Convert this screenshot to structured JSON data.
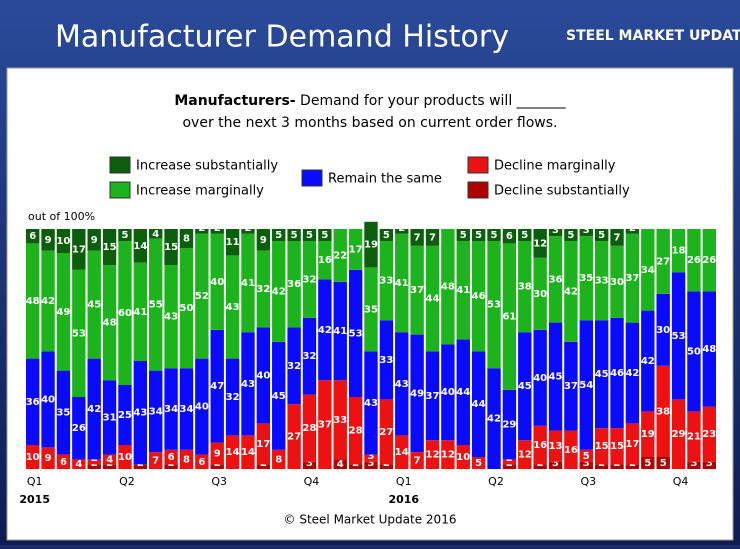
{
  "header": {
    "title": "Manufacturer Demand History",
    "logo": "STEEL MARKET UPDATE"
  },
  "chart_data": {
    "type": "stacked_bar_100",
    "subtitle_bold": "Manufacturers-",
    "subtitle_line1": "Demand for your products will _______",
    "subtitle_line2": "over the next 3 months based on current order flows.",
    "y_note": "out of 100%",
    "footer": "© Steel Market Update 2016",
    "categories": [
      "Q1",
      null,
      null,
      null,
      null,
      null,
      "Q2",
      null,
      null,
      null,
      null,
      null,
      "Q3",
      null,
      null,
      null,
      null,
      null,
      "Q4",
      null,
      null,
      null,
      null,
      null,
      "Q1",
      null,
      null,
      null,
      null,
      null,
      "Q2",
      null,
      null,
      null,
      null,
      null,
      "Q3",
      null,
      null,
      null,
      null,
      null,
      "Q4",
      null,
      null
    ],
    "years": [
      "2015",
      null,
      null,
      null,
      null,
      null,
      null,
      null,
      null,
      null,
      null,
      null,
      null,
      null,
      null,
      null,
      null,
      null,
      null,
      null,
      null,
      null,
      null,
      null,
      "2016",
      null,
      null,
      null,
      null,
      null,
      null,
      null,
      null,
      null,
      null,
      null,
      null,
      null,
      null,
      null,
      null,
      null,
      null,
      null,
      null
    ],
    "ylim": [
      0,
      100
    ],
    "series": [
      {
        "name": "Decline substantially",
        "color": "#b00000",
        "values": [
          0,
          0,
          0,
          0,
          2,
          2,
          0,
          2,
          0,
          2,
          0,
          0,
          2,
          0,
          0,
          2,
          0,
          0,
          3,
          0,
          4,
          2,
          3,
          2,
          0,
          0,
          0,
          0,
          0,
          0,
          0,
          2,
          0,
          2,
          3,
          0,
          3,
          2,
          2,
          2,
          5,
          5,
          0,
          3,
          3
        ]
      },
      {
        "name": "Decline marginally",
        "color": "#ee1111",
        "values": [
          10,
          9,
          6,
          4,
          2,
          4,
          10,
          0,
          7,
          6,
          8,
          6,
          9,
          14,
          14,
          17,
          8,
          27,
          28,
          37,
          33,
          28,
          3,
          27,
          14,
          7,
          12,
          12,
          10,
          5,
          0,
          2,
          12,
          16,
          13,
          16,
          5,
          15,
          15,
          17,
          19,
          38,
          29,
          21,
          23
        ]
      },
      {
        "name": "Remain the same",
        "color": "#0a0aff",
        "values": [
          36,
          40,
          35,
          26,
          42,
          31,
          25,
          43,
          34,
          34,
          34,
          40,
          47,
          32,
          43,
          40,
          45,
          32,
          32,
          42,
          41,
          53,
          43,
          33,
          43,
          49,
          37,
          40,
          44,
          44,
          42,
          29,
          45,
          40,
          45,
          37,
          54,
          45,
          46,
          42,
          42,
          30,
          53,
          50,
          48
        ]
      },
      {
        "name": "Increase marginally",
        "color": "#1db31d",
        "values": [
          48,
          42,
          49,
          53,
          45,
          48,
          60,
          41,
          55,
          43,
          50,
          52,
          40,
          43,
          41,
          32,
          42,
          36,
          32,
          16,
          22,
          17,
          35,
          33,
          41,
          37,
          44,
          48,
          41,
          46,
          53,
          61,
          38,
          30,
          36,
          42,
          35,
          33,
          30,
          37,
          34,
          27,
          18,
          26,
          26
        ]
      },
      {
        "name": "Increase substantially",
        "color": "#0b5e0b",
        "values": [
          6,
          9,
          10,
          17,
          9,
          15,
          5,
          14,
          4,
          15,
          8,
          2,
          2,
          11,
          2,
          9,
          5,
          5,
          5,
          5,
          0,
          0,
          19,
          5,
          2,
          7,
          7,
          0,
          5,
          5,
          5,
          6,
          5,
          12,
          3,
          5,
          3,
          5,
          7,
          2,
          0,
          0,
          0,
          0,
          0
        ]
      }
    ]
  }
}
